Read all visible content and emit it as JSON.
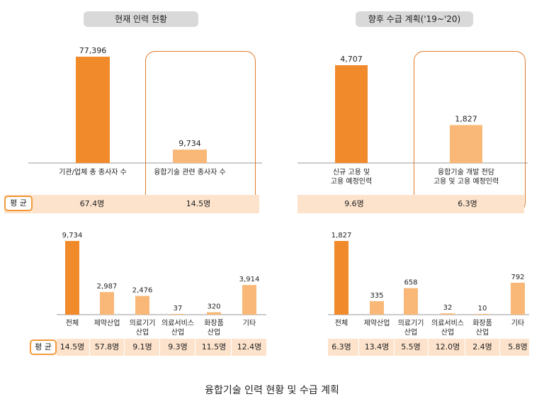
{
  "top_left": {
    "title": "현재 인력 현황",
    "avg_label": "평 균",
    "averages": [
      "67.4명",
      "14.5명"
    ]
  },
  "top_right": {
    "title": "향후 수급 계획('19~'20)",
    "averages": [
      "9.6명",
      "6.3명"
    ]
  },
  "bottom_left": {
    "avg_label": "평 균",
    "averages": [
      "14.5명",
      "57.8명",
      "9.1명",
      "9.3명",
      "11.5명",
      "12.4명"
    ]
  },
  "bottom_right": {
    "averages": [
      "6.3명",
      "13.4명",
      "5.5명",
      "12.0명",
      "2.4명",
      "5.8명"
    ]
  },
  "caption": "융합기술 인력 현황 및 수급 계획",
  "colors": {
    "dark_orange": "#f18a2a",
    "light_orange": "#f9b878",
    "avg_bg": "#fde3cc",
    "box": "#e07a2a"
  },
  "chart_data": [
    {
      "type": "bar",
      "categories": [
        "기관/업체 총 종사자 수",
        "융합기술 관련 종사자 수"
      ],
      "values": [
        77396,
        9734
      ],
      "value_labels": [
        "77,396",
        "9,734"
      ],
      "title": "현재 인력 현황"
    },
    {
      "type": "bar",
      "categories": [
        "신규 고용 및\n고용 예정인력",
        "융합기술 개발 전담\n고용 및 고용 예정인력"
      ],
      "values": [
        4707,
        1827
      ],
      "value_labels": [
        "4,707",
        "1,827"
      ],
      "title": "향후 수급 계획('19~'20)"
    },
    {
      "type": "bar",
      "categories": [
        "전체",
        "제약산업",
        "의료기기\n산업",
        "의료서비스\n산업",
        "화장품\n산업",
        "기타"
      ],
      "values": [
        9734,
        2987,
        2476,
        37,
        320,
        3914
      ],
      "value_labels": [
        "9,734",
        "2,987",
        "2,476",
        "37",
        "320",
        "3,914"
      ]
    },
    {
      "type": "bar",
      "categories": [
        "전체",
        "제약산업",
        "의료기기\n산업",
        "의료서비스\n산업",
        "화장품\n산업",
        "기타"
      ],
      "values": [
        1827,
        335,
        658,
        32,
        10,
        792
      ],
      "value_labels": [
        "1,827",
        "335",
        "658",
        "32",
        "10",
        "792"
      ]
    }
  ]
}
